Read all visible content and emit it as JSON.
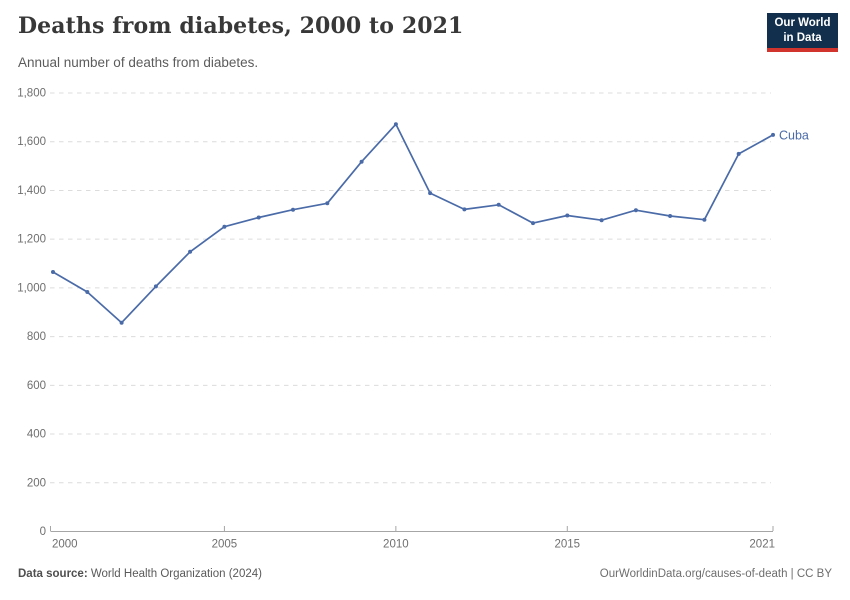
{
  "header": {
    "title": "Deaths from diabetes, 2000 to 2021",
    "subtitle": "Annual number of deaths from diabetes.",
    "logo": {
      "line1": "Our World",
      "line2": "in Data"
    }
  },
  "chart_data": {
    "type": "line",
    "title": "Deaths from diabetes, 2000 to 2021",
    "subtitle": "Annual number of deaths from diabetes.",
    "xlabel": "",
    "ylabel": "",
    "xlim": [
      2000,
      2021
    ],
    "ylim": [
      0,
      1800
    ],
    "x_ticks": [
      2000,
      2005,
      2010,
      2015,
      2021
    ],
    "y_ticks": [
      0,
      200,
      400,
      600,
      800,
      1000,
      1200,
      1400,
      1600,
      1800
    ],
    "grid": "horizontal-dashed",
    "legend_position": "line-end-label",
    "x": [
      2000,
      2001,
      2002,
      2003,
      2004,
      2005,
      2006,
      2007,
      2008,
      2009,
      2010,
      2011,
      2012,
      2013,
      2014,
      2015,
      2016,
      2017,
      2018,
      2019,
      2020,
      2021
    ],
    "series": [
      {
        "name": "Cuba",
        "color": "#4A6BA8",
        "values": [
          1063,
          981,
          855,
          1004,
          1146,
          1249,
          1287,
          1319,
          1345,
          1516,
          1670,
          1387,
          1320,
          1339,
          1264,
          1295,
          1276,
          1317,
          1293,
          1278,
          1548,
          1626
        ]
      }
    ]
  },
  "colors": {
    "line": "#4A6BA8",
    "grid": "#DCDCDC",
    "axis": "#A6A6A6",
    "tick_label": "#6F6F6F",
    "logo_bg": "#12304E",
    "logo_accent": "#D0342C"
  },
  "footer": {
    "source_label": "Data source:",
    "source_value": " World Health Organization (2024)",
    "license": "OurWorldinData.org/causes-of-death | CC BY"
  }
}
